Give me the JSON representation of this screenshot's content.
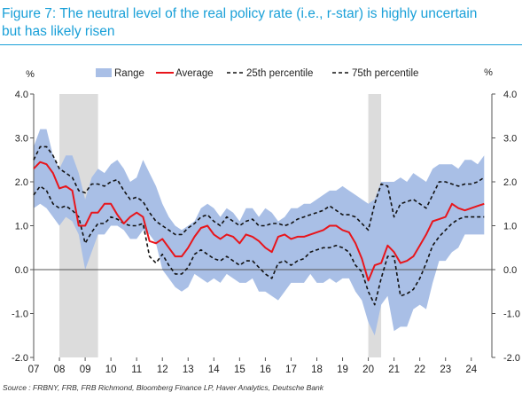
{
  "header": {
    "title_line1": "Figure 7: The neutral level of the real policy rate (i.e., r-star) is highly uncertain",
    "title_line2": "but has likely risen"
  },
  "source": "Source : FRBNY, FRB, FRB Richmond, Bloomberg Finance LP, Haver Analytics, Deutsche Bank",
  "colors": {
    "title": "#1aa0d8",
    "range": "#a9bfe6",
    "average": "#e8151b",
    "percentile": "#111111",
    "recession": "#dcdcdc"
  },
  "chart_data": {
    "type": "area",
    "title": "",
    "ylabel_left": "%",
    "ylabel_right": "%",
    "ylim": [
      -2.0,
      4.0
    ],
    "yticks": [
      "4.0",
      "3.0",
      "2.0",
      "1.0",
      "0.0",
      "-1.0",
      "-2.0"
    ],
    "xlim": [
      2007,
      2024.8
    ],
    "xticks": [
      "07",
      "08",
      "09",
      "10",
      "11",
      "12",
      "13",
      "14",
      "15",
      "16",
      "17",
      "18",
      "19",
      "20",
      "21",
      "22",
      "23",
      "24"
    ],
    "legend": [
      "Range",
      "Average",
      "25th percentile",
      "75th percentile"
    ],
    "legend_position": "top",
    "recessions": [
      [
        2008.0,
        2009.5
      ],
      [
        2020.0,
        2020.5
      ]
    ],
    "x": [
      2007.0,
      2007.25,
      2007.5,
      2007.75,
      2008.0,
      2008.25,
      2008.5,
      2008.75,
      2009.0,
      2009.25,
      2009.5,
      2009.75,
      2010.0,
      2010.25,
      2010.5,
      2010.75,
      2011.0,
      2011.25,
      2011.5,
      2011.75,
      2012.0,
      2012.25,
      2012.5,
      2012.75,
      2013.0,
      2013.25,
      2013.5,
      2013.75,
      2014.0,
      2014.25,
      2014.5,
      2014.75,
      2015.0,
      2015.25,
      2015.5,
      2015.75,
      2016.0,
      2016.25,
      2016.5,
      2016.75,
      2017.0,
      2017.25,
      2017.5,
      2017.75,
      2018.0,
      2018.25,
      2018.5,
      2018.75,
      2019.0,
      2019.25,
      2019.5,
      2019.75,
      2020.0,
      2020.25,
      2020.5,
      2020.75,
      2021.0,
      2021.25,
      2021.5,
      2021.75,
      2022.0,
      2022.25,
      2022.5,
      2022.75,
      2023.0,
      2023.25,
      2023.5,
      2023.75,
      2024.0,
      2024.25,
      2024.5
    ],
    "series": [
      {
        "name": "Range",
        "upper": [
          2.8,
          3.2,
          3.2,
          2.6,
          2.3,
          2.6,
          2.6,
          2.2,
          1.6,
          2.1,
          2.3,
          2.2,
          2.4,
          2.5,
          2.3,
          2.0,
          2.1,
          2.5,
          2.2,
          1.9,
          1.5,
          1.2,
          1.0,
          0.9,
          1.0,
          1.1,
          1.4,
          1.5,
          1.4,
          1.2,
          1.4,
          1.3,
          1.1,
          1.4,
          1.4,
          1.2,
          1.4,
          1.3,
          1.1,
          1.2,
          1.4,
          1.4,
          1.5,
          1.5,
          1.6,
          1.7,
          1.8,
          1.8,
          1.9,
          1.8,
          1.7,
          1.6,
          1.5,
          1.6,
          2.0,
          2.0,
          2.0,
          2.1,
          2.0,
          2.2,
          2.1,
          2.0,
          2.3,
          2.4,
          2.4,
          2.4,
          2.3,
          2.5,
          2.5,
          2.4,
          2.6
        ]
      },
      {
        "name": "Range",
        "lower": [
          1.4,
          1.5,
          1.4,
          1.2,
          1.0,
          1.2,
          1.1,
          0.8,
          0.0,
          0.4,
          0.8,
          0.8,
          1.0,
          1.0,
          0.9,
          0.7,
          0.7,
          0.9,
          0.8,
          0.6,
          0.0,
          -0.2,
          -0.4,
          -0.5,
          -0.4,
          -0.1,
          -0.2,
          -0.3,
          -0.2,
          -0.3,
          -0.1,
          -0.2,
          -0.3,
          -0.3,
          -0.2,
          -0.5,
          -0.5,
          -0.6,
          -0.7,
          -0.5,
          -0.3,
          -0.3,
          -0.3,
          -0.1,
          -0.3,
          -0.3,
          -0.2,
          -0.3,
          -0.2,
          -0.2,
          -0.5,
          -0.7,
          -1.2,
          -1.5,
          -0.8,
          -0.6,
          -1.4,
          -1.3,
          -1.3,
          -0.9,
          -0.8,
          -0.9,
          -0.3,
          0.2,
          0.2,
          0.4,
          0.5,
          0.8,
          0.8,
          0.8,
          0.8
        ]
      },
      {
        "name": "Average",
        "values": [
          2.3,
          2.45,
          2.4,
          2.2,
          1.85,
          1.9,
          1.8,
          1.0,
          1.0,
          1.3,
          1.3,
          1.5,
          1.5,
          1.25,
          1.05,
          1.2,
          1.3,
          1.2,
          0.65,
          0.6,
          0.7,
          0.5,
          0.3,
          0.3,
          0.5,
          0.75,
          0.95,
          1.0,
          0.8,
          0.7,
          0.8,
          0.75,
          0.6,
          0.8,
          0.75,
          0.65,
          0.5,
          0.4,
          0.75,
          0.8,
          0.7,
          0.75,
          0.75,
          0.8,
          0.85,
          0.9,
          1.0,
          1.0,
          0.9,
          0.85,
          0.6,
          0.25,
          -0.25,
          0.1,
          0.15,
          0.55,
          0.4,
          0.15,
          0.2,
          0.3,
          0.55,
          0.8,
          1.1,
          1.15,
          1.2,
          1.5,
          1.4,
          1.35,
          1.4,
          1.45,
          1.5
        ]
      },
      {
        "name": "75th percentile",
        "values": [
          2.5,
          2.8,
          2.8,
          2.6,
          2.3,
          2.2,
          2.1,
          1.8,
          1.75,
          1.95,
          1.95,
          1.9,
          2.0,
          2.05,
          1.8,
          1.6,
          1.65,
          1.55,
          1.3,
          1.1,
          1.0,
          0.9,
          0.8,
          0.8,
          0.95,
          1.05,
          1.2,
          1.25,
          1.1,
          1.0,
          1.2,
          1.1,
          1.0,
          1.1,
          1.15,
          1.0,
          1.0,
          1.05,
          1.05,
          1.0,
          1.05,
          1.15,
          1.2,
          1.25,
          1.3,
          1.35,
          1.45,
          1.35,
          1.25,
          1.25,
          1.2,
          1.05,
          0.9,
          1.5,
          1.95,
          1.9,
          1.2,
          1.5,
          1.55,
          1.6,
          1.5,
          1.4,
          1.7,
          2.0,
          2.0,
          1.95,
          1.9,
          1.95,
          1.95,
          2.0,
          2.1
        ]
      },
      {
        "name": "25th percentile",
        "values": [
          1.7,
          1.9,
          1.8,
          1.5,
          1.4,
          1.45,
          1.35,
          1.2,
          0.6,
          0.85,
          1.05,
          1.05,
          1.2,
          1.15,
          1.05,
          1.0,
          1.0,
          1.05,
          0.3,
          0.15,
          0.35,
          0.1,
          -0.1,
          -0.1,
          0.05,
          0.35,
          0.45,
          0.35,
          0.25,
          0.2,
          0.3,
          0.2,
          0.1,
          0.2,
          0.2,
          0.05,
          -0.1,
          -0.2,
          0.15,
          0.2,
          0.1,
          0.2,
          0.25,
          0.4,
          0.45,
          0.5,
          0.5,
          0.55,
          0.5,
          0.4,
          0.1,
          -0.05,
          -0.5,
          -0.8,
          -0.2,
          0.3,
          0.3,
          -0.6,
          -0.55,
          -0.45,
          -0.2,
          0.15,
          0.55,
          0.75,
          0.9,
          1.05,
          1.15,
          1.2,
          1.2,
          1.2,
          1.2
        ]
      }
    ]
  }
}
